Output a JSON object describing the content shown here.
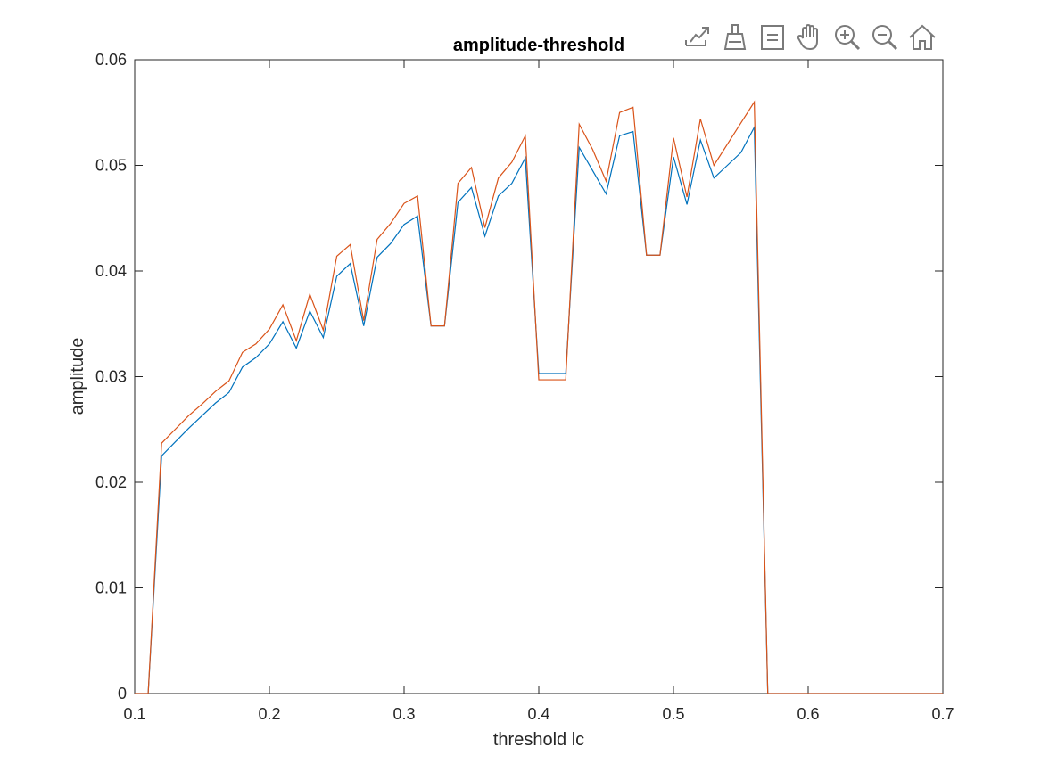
{
  "toolbar": {
    "icons": [
      "export-icon",
      "brush-icon",
      "legend-icon",
      "pan-icon",
      "zoom-in-icon",
      "zoom-out-icon",
      "home-icon"
    ]
  },
  "chart_data": {
    "type": "line",
    "title": "amplitude-threshold",
    "xlabel": "threshold lc",
    "ylabel": "amplitude",
    "xlim": [
      0.1,
      0.7
    ],
    "ylim": [
      0,
      0.06
    ],
    "xticks": [
      0.1,
      0.2,
      0.3,
      0.4,
      0.5,
      0.6,
      0.7
    ],
    "xtick_labels": [
      "0.1",
      "0.2",
      "0.3",
      "0.4",
      "0.5",
      "0.6",
      "0.7"
    ],
    "yticks": [
      0,
      0.01,
      0.02,
      0.03,
      0.04,
      0.05,
      0.06
    ],
    "ytick_labels": [
      "0",
      "0.01",
      "0.02",
      "0.03",
      "0.04",
      "0.05",
      "0.06"
    ],
    "grid": false,
    "series": [
      {
        "color": "#0072BD",
        "x": [
          0.1,
          0.11,
          0.12,
          0.13,
          0.14,
          0.15,
          0.16,
          0.17,
          0.18,
          0.19,
          0.2,
          0.21,
          0.22,
          0.23,
          0.24,
          0.25,
          0.26,
          0.27,
          0.28,
          0.29,
          0.3,
          0.31,
          0.32,
          0.33,
          0.34,
          0.35,
          0.36,
          0.37,
          0.38,
          0.39,
          0.4,
          0.41,
          0.42,
          0.43,
          0.44,
          0.45,
          0.46,
          0.47,
          0.48,
          0.49,
          0.5,
          0.51,
          0.52,
          0.53,
          0.54,
          0.55,
          0.56,
          0.57,
          0.58,
          0.59,
          0.6,
          0.7
        ],
        "y": [
          0,
          0,
          0.0225,
          0.0238,
          0.0251,
          0.0263,
          0.0275,
          0.0285,
          0.0309,
          0.0318,
          0.0331,
          0.0352,
          0.0327,
          0.0362,
          0.0337,
          0.0395,
          0.0407,
          0.0348,
          0.0413,
          0.0426,
          0.0444,
          0.0452,
          0.0348,
          0.0348,
          0.0465,
          0.0479,
          0.0433,
          0.0471,
          0.0483,
          0.0507,
          0.0303,
          0.0303,
          0.0303,
          0.0517,
          0.0495,
          0.0473,
          0.0528,
          0.0532,
          0.0415,
          0.0415,
          0.0508,
          0.0463,
          0.0524,
          0.0488,
          0.05,
          0.0512,
          0.0536,
          0,
          0,
          0,
          0,
          0
        ]
      },
      {
        "color": "#D95319",
        "x": [
          0.1,
          0.11,
          0.12,
          0.13,
          0.14,
          0.15,
          0.16,
          0.17,
          0.18,
          0.19,
          0.2,
          0.21,
          0.22,
          0.23,
          0.24,
          0.25,
          0.26,
          0.27,
          0.28,
          0.29,
          0.3,
          0.31,
          0.32,
          0.33,
          0.34,
          0.35,
          0.36,
          0.37,
          0.38,
          0.39,
          0.4,
          0.41,
          0.42,
          0.43,
          0.44,
          0.45,
          0.46,
          0.47,
          0.48,
          0.49,
          0.5,
          0.51,
          0.52,
          0.53,
          0.54,
          0.55,
          0.56,
          0.57,
          0.58,
          0.59,
          0.6,
          0.7
        ],
        "y": [
          0,
          0,
          0.0237,
          0.025,
          0.0263,
          0.0274,
          0.0286,
          0.0296,
          0.0323,
          0.0331,
          0.0345,
          0.0368,
          0.0334,
          0.0378,
          0.0344,
          0.0414,
          0.0425,
          0.0353,
          0.043,
          0.0445,
          0.0464,
          0.0471,
          0.0348,
          0.0348,
          0.0483,
          0.0498,
          0.0441,
          0.0488,
          0.0503,
          0.0528,
          0.0297,
          0.0297,
          0.0297,
          0.0539,
          0.0515,
          0.0485,
          0.055,
          0.0555,
          0.0415,
          0.0415,
          0.0526,
          0.047,
          0.0544,
          0.05,
          0.052,
          0.054,
          0.056,
          0,
          0,
          0,
          0,
          0
        ]
      }
    ]
  }
}
